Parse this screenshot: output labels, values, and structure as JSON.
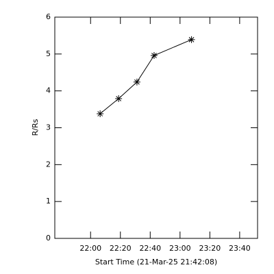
{
  "chart_data": {
    "type": "line",
    "y_label": "R/Rs",
    "x_label": "Start Time (21-Mar-25 21:42:08)",
    "x": [
      1326.4,
      1338.8,
      1351.1,
      1362.6,
      1387.7
    ],
    "series": [
      {
        "values": [
          3.38,
          3.79,
          4.24,
          4.96,
          5.39
        ],
        "color": "#000000",
        "marker": "asterisk"
      }
    ],
    "xlim": [
      1296,
      1432
    ],
    "xticks": [
      {
        "value": 1320,
        "label": "22:00"
      },
      {
        "value": 1340,
        "label": "22:20"
      },
      {
        "value": 1360,
        "label": "22:40"
      },
      {
        "value": 1380,
        "label": "23:00"
      },
      {
        "value": 1400,
        "label": "23:20"
      },
      {
        "value": 1420,
        "label": "23:40"
      }
    ],
    "ylim": [
      0,
      6
    ],
    "yticks": [
      0,
      1,
      2,
      3,
      4,
      5,
      6
    ]
  }
}
